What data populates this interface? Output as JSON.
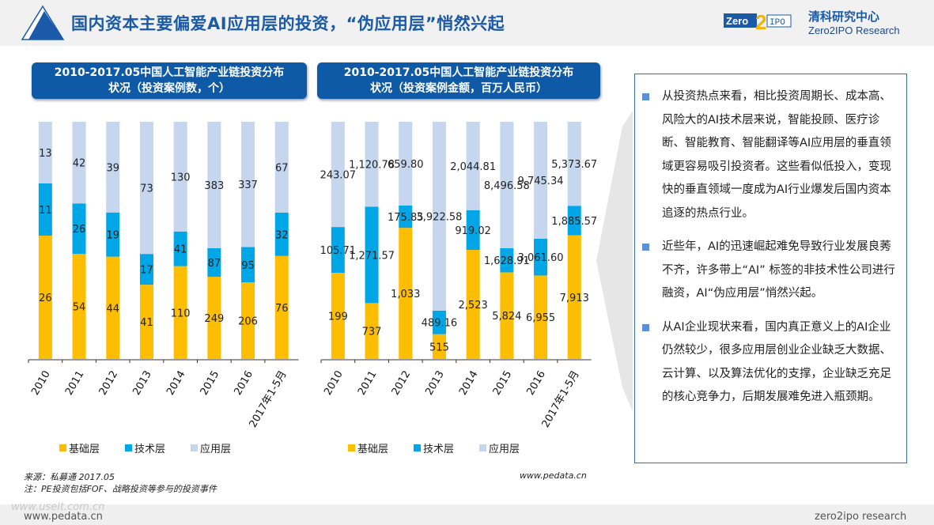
{
  "header": {
    "title": "国内资本主要偏爱AI应用层的投资，“伪应用层”悄然兴起",
    "brand_logo_text": "Zero2IPO",
    "brand_cn": "清科研究中心",
    "brand_en": "Zero2IPO Research"
  },
  "colors": {
    "base": "#fdbd00",
    "tech": "#00a6e6",
    "app": "#c5d6ee",
    "accent": "#0e5aa6"
  },
  "chart_data": [
    {
      "type": "bar",
      "stacked": "percent",
      "title": "2010-2017.05中国人工智能产业链投资分布状况（投资案例数，个）",
      "categories": [
        "2010",
        "2011",
        "2012",
        "2013",
        "2014",
        "2015",
        "2016",
        "2017年1-5月"
      ],
      "series": [
        {
          "name": "基础层",
          "values": [
            26,
            54,
            44,
            41,
            110,
            249,
            206,
            76
          ],
          "labels": [
            "26",
            "54",
            "44",
            "41",
            "110",
            "249",
            "206",
            "76"
          ]
        },
        {
          "name": "技术层",
          "values": [
            11,
            26,
            19,
            17,
            41,
            87,
            95,
            32
          ],
          "labels": [
            "11",
            "26",
            "19",
            "17",
            "41",
            "87",
            "95",
            "32"
          ]
        },
        {
          "name": "应用层",
          "values": [
            13,
            42,
            39,
            73,
            130,
            383,
            337,
            67
          ],
          "labels": [
            "13",
            "42",
            "39",
            "73",
            "130",
            "383",
            "337",
            "67"
          ]
        }
      ],
      "legend": "bottom",
      "grid": false
    },
    {
      "type": "bar",
      "stacked": "percent",
      "title": "2010-2017.05中国人工智能产业链投资分布状况（投资案例金额，百万人民币）",
      "categories": [
        "2010",
        "2011",
        "2012",
        "2013",
        "2014",
        "2015",
        "2016",
        "2017年1-5月"
      ],
      "series": [
        {
          "name": "基础层",
          "values": [
            199,
            737,
            1033,
            515,
            2523,
            5824,
            6955,
            7913
          ],
          "labels": [
            "199",
            "737",
            "1,033",
            "515",
            "2,523",
            "5,824",
            "6,955",
            "7,913"
          ]
        },
        {
          "name": "技术层",
          "values": [
            105.71,
            1271.57,
            175.85,
            489.16,
            919.02,
            1628.91,
            3061.6,
            1885.57
          ],
          "labels": [
            "105.71",
            "1,271.57",
            "175.85",
            "489.16",
            "919.02",
            "1,628.91",
            "3,061.60",
            "1,885.57"
          ]
        },
        {
          "name": "应用层",
          "values": [
            243.07,
            1120.78,
            659.8,
            3922.58,
            2044.81,
            8496.58,
            9745.34,
            5373.67
          ],
          "labels": [
            "243.07",
            "1,120.78",
            "659.80",
            "3,922.58",
            "2,044.81",
            "8,496.58",
            "9,745.34",
            "5,373.67"
          ]
        }
      ],
      "legend": "bottom",
      "grid": false
    }
  ],
  "chart_titles": [
    {
      "l1": "2010-2017.05中国人工智能产业链投资分布",
      "l2": "状况（投资案例数，个）"
    },
    {
      "l1": "2010-2017.05中国人工智能产业链投资分布",
      "l2": "状况（投资案例金额，百万人民币）"
    }
  ],
  "legend": [
    "基础层",
    "技术层",
    "应用层"
  ],
  "notes": {
    "source": "来源：私募通 2017.05",
    "note": "注：PE投资包括FOF、战略投资等参与的投资事件",
    "site": "www.pedata.cn"
  },
  "paragraphs": [
    "从投资热点来看，相比投资周期长、成本高、风险大的AI技术层来说，智能投顾、医疗诊断、智能教育、智能翻译等AI应用层的垂直领域更容易吸引投资者。这些看似低投入，变现快的垂直领域一度成为AI行业爆发后国内资本追逐的热点行业。",
    "近些年，AI的迅速崛起难免导致行业发展良莠不齐，许多带上“AI” 标签的非技术性公司进行融资，AI“伪应用层”悄然兴起。",
    "从AI企业现状来看，国内真正意义上的AI企业仍然较少，很多应用层创业企业缺乏大数据、云计算、以及算法优化的支撑，企业缺乏充足的核心竞争力，后期发展难免进入瓶颈期。"
  ],
  "footer": {
    "left": "www.pedata.cn",
    "right": "zero2ipo research",
    "watermark": "www.uselt.com.cn"
  }
}
